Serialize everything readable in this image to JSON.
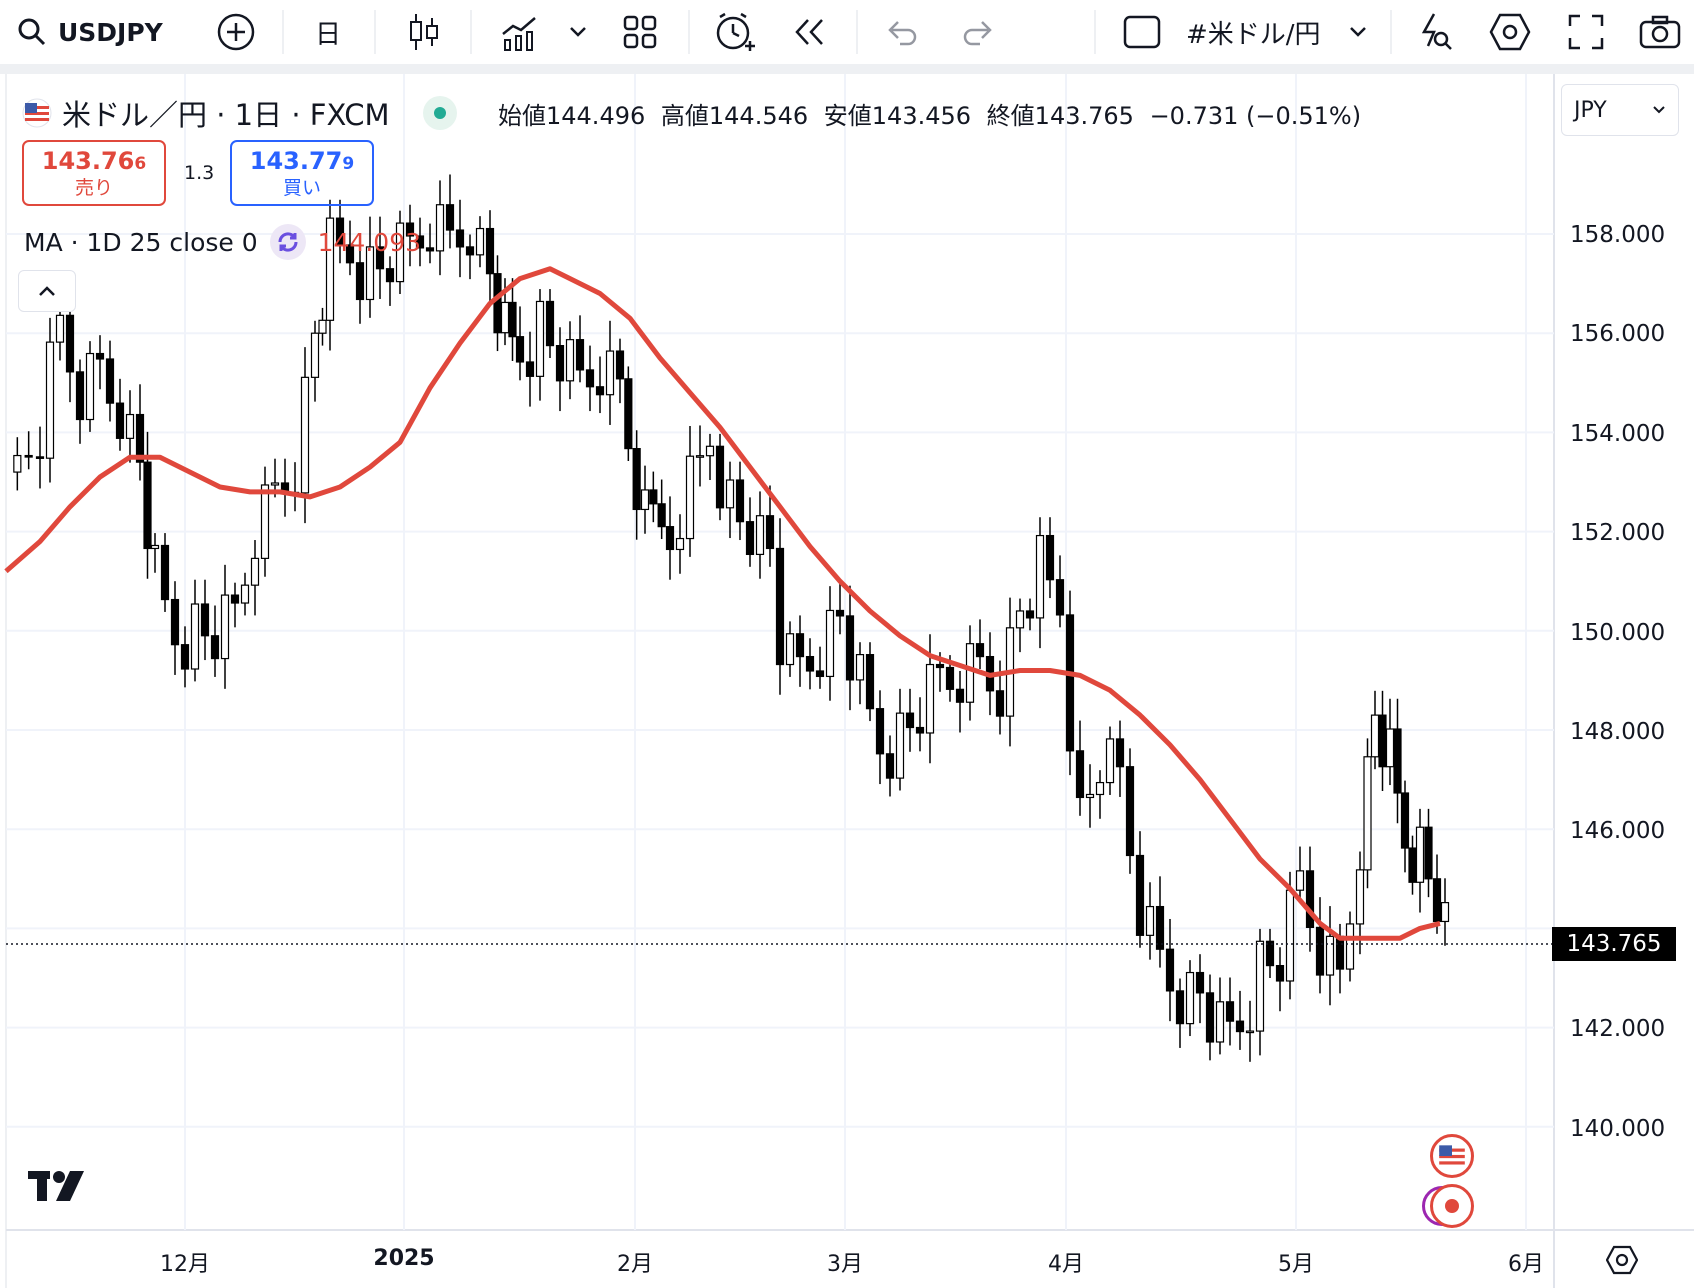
{
  "toolbar": {
    "symbol": "USDJPY",
    "interval": "日",
    "watchlist": "#米ドル/円"
  },
  "legend": {
    "title": "米ドル／円 · 1日 · FXCM",
    "open_label": "始値",
    "open": "144.496",
    "high_label": "高値",
    "high": "144.546",
    "low_label": "安値",
    "low": "143.456",
    "close_label": "終値",
    "close": "143.765",
    "change": "−0.731 (−0.51%)"
  },
  "quotes": {
    "sell_price": "143.76",
    "sell_small": "6",
    "sell_label": "売り",
    "spread": "1.3",
    "buy_price": "143.77",
    "buy_small": "9",
    "buy_label": "買い"
  },
  "ma": {
    "label": "MA · 1D 25 close 0",
    "value": "144.093"
  },
  "currency": "JPY",
  "last_price": "143.765",
  "price_axis": [
    "158.000",
    "156.000",
    "154.000",
    "152.000",
    "150.000",
    "148.000",
    "146.000",
    "142.000",
    "140.000"
  ],
  "time_axis": [
    "12月",
    "2025",
    "2月",
    "3月",
    "4月",
    "5月",
    "6月"
  ],
  "colors": {
    "ma_line": "#e0483c",
    "sell": "#e0483c",
    "buy": "#2962ff",
    "candle": "#000000",
    "grid": "#f0f3fa"
  }
}
